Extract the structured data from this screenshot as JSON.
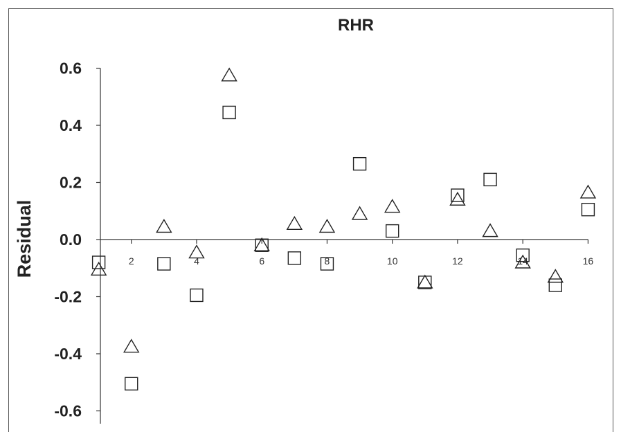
{
  "chart_data": {
    "type": "scatter",
    "title": "RHR",
    "xlabel": "",
    "ylabel": "Residual",
    "xlim": [
      0,
      16
    ],
    "ylim": [
      -0.6,
      0.6
    ],
    "x_ticks": [
      2,
      4,
      6,
      8,
      10,
      12,
      14,
      16
    ],
    "x_tick_labels": [
      "2",
      "4",
      "6",
      "8",
      "10",
      "12",
      "14",
      "16"
    ],
    "y_ticks": [
      -0.6,
      -0.4,
      -0.2,
      0.0,
      0.2,
      0.4,
      0.6
    ],
    "y_tick_labels": [
      "-0.6",
      "-0.4",
      "-0.2",
      "0.0",
      "0.2",
      "0.4",
      "0.6"
    ],
    "grid": false,
    "legend": "none",
    "series": [
      {
        "marker": "triangle",
        "x": [
          1,
          2,
          3,
          4,
          5,
          6,
          7,
          8,
          9,
          10,
          11,
          12,
          13,
          14,
          15,
          16
        ],
        "y": [
          -0.105,
          -0.375,
          0.045,
          -0.045,
          0.575,
          -0.02,
          0.055,
          0.045,
          0.09,
          0.115,
          -0.15,
          0.14,
          0.03,
          -0.08,
          -0.13,
          0.165
        ]
      },
      {
        "marker": "square",
        "x": [
          1,
          2,
          3,
          4,
          5,
          6,
          7,
          8,
          9,
          10,
          11,
          12,
          13,
          14,
          15,
          16
        ],
        "y": [
          -0.08,
          -0.505,
          -0.085,
          -0.195,
          0.445,
          -0.02,
          -0.065,
          -0.085,
          0.265,
          0.03,
          -0.15,
          0.155,
          0.21,
          -0.055,
          -0.16,
          0.105
        ]
      }
    ],
    "colors": {
      "marker_stroke": "#222222",
      "axis": "#333333"
    }
  }
}
